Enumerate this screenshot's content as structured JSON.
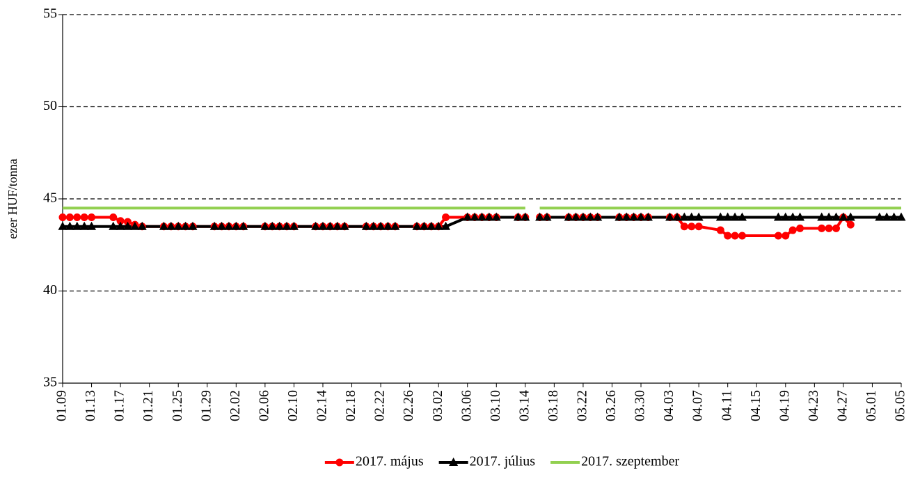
{
  "chart_data": {
    "type": "line",
    "y_label": "ezer HUF/tonna",
    "x": [
      "01.09",
      "01.10",
      "01.11",
      "01.12",
      "01.13",
      "01.16",
      "01.17",
      "01.18",
      "01.19",
      "01.20",
      "01.23",
      "01.24",
      "01.25",
      "01.26",
      "01.27",
      "01.30",
      "01.31",
      "02.01",
      "02.02",
      "02.03",
      "02.06",
      "02.07",
      "02.08",
      "02.09",
      "02.10",
      "02.13",
      "02.14",
      "02.15",
      "02.16",
      "02.17",
      "02.20",
      "02.21",
      "02.22",
      "02.23",
      "02.24",
      "02.27",
      "02.28",
      "03.01",
      "03.02",
      "03.03",
      "03.06",
      "03.07",
      "03.08",
      "03.09",
      "03.10",
      "03.13",
      "03.14",
      "03.15",
      "03.16",
      "03.17",
      "03.20",
      "03.21",
      "03.22",
      "03.23",
      "03.24",
      "03.27",
      "03.28",
      "03.29",
      "03.30",
      "03.31",
      "04.03",
      "04.04",
      "04.05",
      "04.06",
      "04.07",
      "04.10",
      "04.11",
      "04.12",
      "04.13",
      "04.18",
      "04.19",
      "04.20",
      "04.21",
      "04.24",
      "04.25",
      "04.26",
      "04.27",
      "04.28",
      "05.02",
      "05.03",
      "05.04",
      "05.05"
    ],
    "xlim": [
      "01.09",
      "05.05"
    ],
    "xticks": [
      "01.09",
      "01.13",
      "01.17",
      "01.21",
      "01.25",
      "01.29",
      "02.02",
      "02.06",
      "02.10",
      "02.14",
      "02.18",
      "02.22",
      "02.26",
      "03.02",
      "03.06",
      "03.10",
      "03.14",
      "03.18",
      "03.22",
      "03.26",
      "03.30",
      "04.03",
      "04.07",
      "04.11",
      "04.15",
      "04.19",
      "04.23",
      "04.27",
      "05.01",
      "05.05"
    ],
    "ylim": [
      35,
      55
    ],
    "yticks": [
      35,
      40,
      45,
      50,
      55
    ],
    "grid": true,
    "legend": "bottom",
    "series": [
      {
        "name": "2017. május",
        "color": "#ff0000",
        "marker": "circle",
        "values": [
          44,
          44,
          44,
          44,
          44,
          44,
          43.8,
          43.75,
          43.6,
          43.5,
          43.5,
          43.5,
          43.5,
          43.5,
          43.5,
          43.5,
          43.5,
          43.5,
          43.5,
          43.5,
          43.5,
          43.5,
          43.5,
          43.5,
          43.5,
          43.5,
          43.5,
          43.5,
          43.5,
          43.5,
          43.5,
          43.5,
          43.5,
          43.5,
          43.5,
          43.5,
          43.5,
          43.5,
          43.5,
          44,
          44,
          44,
          44,
          44,
          44,
          44,
          44,
          null,
          44,
          44,
          44,
          44,
          44,
          44,
          44,
          44,
          44,
          44,
          44,
          44,
          44,
          44,
          43.5,
          43.5,
          43.5,
          43.3,
          43,
          43,
          43,
          43,
          43,
          43.3,
          43.4,
          43.4,
          43.4,
          43.4,
          44,
          43.6,
          null,
          null,
          null,
          null
        ]
      },
      {
        "name": "2017. július",
        "color": "#000000",
        "marker": "triangle",
        "values": [
          43.5,
          43.5,
          43.5,
          43.5,
          43.5,
          43.5,
          43.5,
          43.5,
          43.5,
          43.5,
          43.5,
          43.5,
          43.5,
          43.5,
          43.5,
          43.5,
          43.5,
          43.5,
          43.5,
          43.5,
          43.5,
          43.5,
          43.5,
          43.5,
          43.5,
          43.5,
          43.5,
          43.5,
          43.5,
          43.5,
          43.5,
          43.5,
          43.5,
          43.5,
          43.5,
          43.5,
          43.5,
          43.5,
          43.5,
          43.5,
          44,
          44,
          44,
          44,
          44,
          44,
          44,
          null,
          44,
          44,
          44,
          44,
          44,
          44,
          44,
          44,
          44,
          44,
          44,
          44,
          44,
          44,
          44,
          44,
          44,
          44,
          44,
          44,
          44,
          44,
          44,
          44,
          44,
          44,
          44,
          44,
          44,
          44,
          44,
          44,
          44,
          44
        ]
      },
      {
        "name": "2017. szeptember",
        "color": "#92d050",
        "marker": "none",
        "values": [
          44.5,
          44.5,
          44.5,
          44.5,
          44.5,
          44.5,
          44.5,
          44.5,
          44.5,
          44.5,
          44.5,
          44.5,
          44.5,
          44.5,
          44.5,
          44.5,
          44.5,
          44.5,
          44.5,
          44.5,
          44.5,
          44.5,
          44.5,
          44.5,
          44.5,
          44.5,
          44.5,
          44.5,
          44.5,
          44.5,
          44.5,
          44.5,
          44.5,
          44.5,
          44.5,
          44.5,
          44.5,
          44.5,
          44.5,
          44.5,
          44.5,
          44.5,
          44.5,
          44.5,
          44.5,
          44.5,
          44.5,
          null,
          44.5,
          44.5,
          44.5,
          44.5,
          44.5,
          44.5,
          44.5,
          44.5,
          44.5,
          44.5,
          44.5,
          44.5,
          44.5,
          44.5,
          44.5,
          44.5,
          44.5,
          44.5,
          44.5,
          44.5,
          44.5,
          44.5,
          44.5,
          44.5,
          44.5,
          44.5,
          44.5,
          44.5,
          44.5,
          44.5,
          44.5,
          44.5,
          44.5,
          44.5
        ]
      }
    ]
  }
}
